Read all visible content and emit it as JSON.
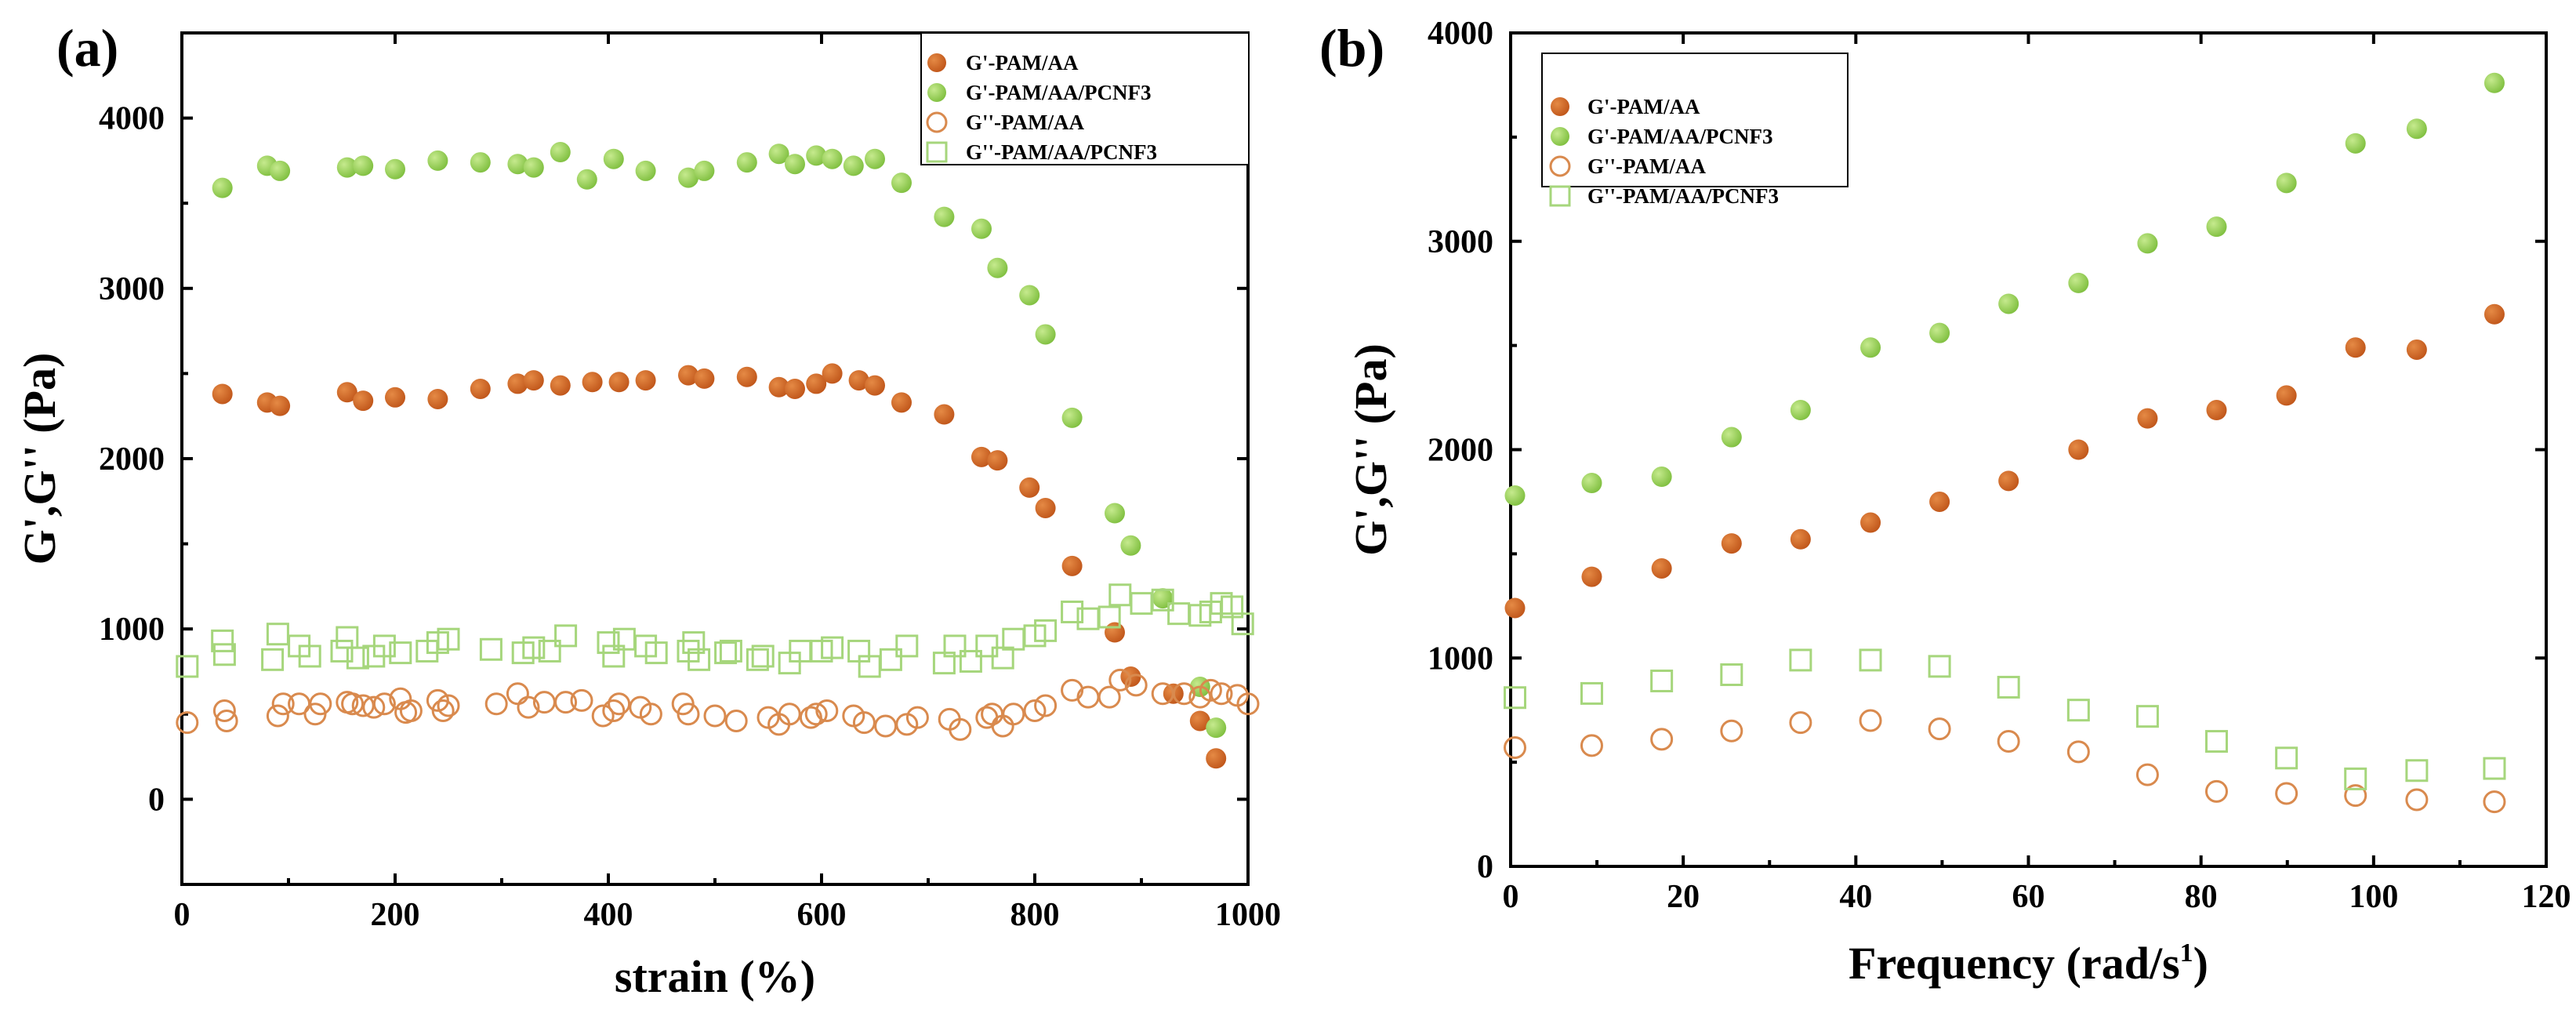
{
  "colors": {
    "orange": "#c0561a",
    "orange_light": "#e58a45",
    "green": "#7fbf3f",
    "green_light": "#c6ea8e",
    "orange_open": "#d98a4e",
    "green_open": "#a6d67c"
  },
  "chart_data": [
    {
      "panel": "(a)",
      "type": "scatter",
      "xlabel": "strain (%)",
      "ylabel": "G',G'' (Pa)",
      "xlim": [
        0,
        1000
      ],
      "ylim": [
        -500,
        4500
      ],
      "xticks": [
        0,
        200,
        400,
        600,
        800,
        1000
      ],
      "yticks": [
        0,
        1000,
        2000,
        3000,
        4000
      ],
      "legend": {
        "placement": "top-right",
        "entries": [
          "G'-PAM/AA",
          "G'-PAM/AA/PCNF3",
          "G''-PAM/AA",
          "G''-PAM/AA/PCNF3"
        ]
      },
      "series": [
        {
          "name": "G'-PAM/AA",
          "marker": "filled-circle",
          "color_key": "orange",
          "points": [
            [
              38,
              2380
            ],
            [
              80,
              2330
            ],
            [
              92,
              2310
            ],
            [
              155,
              2390
            ],
            [
              170,
              2340
            ],
            [
              200,
              2360
            ],
            [
              240,
              2350
            ],
            [
              280,
              2410
            ],
            [
              315,
              2440
            ],
            [
              330,
              2460
            ],
            [
              355,
              2430
            ],
            [
              385,
              2450
            ],
            [
              410,
              2450
            ],
            [
              435,
              2460
            ],
            [
              475,
              2490
            ],
            [
              490,
              2470
            ],
            [
              530,
              2480
            ],
            [
              560,
              2420
            ],
            [
              575,
              2410
            ],
            [
              595,
              2440
            ],
            [
              610,
              2500
            ],
            [
              635,
              2460
            ],
            [
              650,
              2430
            ],
            [
              675,
              2330
            ],
            [
              715,
              2260
            ],
            [
              750,
              2010
            ],
            [
              765,
              1990
            ],
            [
              795,
              1830
            ],
            [
              810,
              1710
            ],
            [
              835,
              1370
            ],
            [
              875,
              980
            ],
            [
              890,
              720
            ],
            [
              930,
              620
            ],
            [
              955,
              460
            ],
            [
              970,
              240
            ]
          ]
        },
        {
          "name": "G'-PAM/AA/PCNF3",
          "marker": "filled-circle",
          "color_key": "green",
          "points": [
            [
              38,
              3590
            ],
            [
              80,
              3720
            ],
            [
              92,
              3690
            ],
            [
              155,
              3710
            ],
            [
              170,
              3720
            ],
            [
              200,
              3700
            ],
            [
              240,
              3750
            ],
            [
              280,
              3740
            ],
            [
              315,
              3730
            ],
            [
              330,
              3710
            ],
            [
              355,
              3800
            ],
            [
              380,
              3640
            ],
            [
              405,
              3760
            ],
            [
              435,
              3690
            ],
            [
              475,
              3650
            ],
            [
              490,
              3690
            ],
            [
              530,
              3740
            ],
            [
              560,
              3790
            ],
            [
              575,
              3730
            ],
            [
              595,
              3780
            ],
            [
              610,
              3760
            ],
            [
              630,
              3720
            ],
            [
              650,
              3760
            ],
            [
              675,
              3620
            ],
            [
              715,
              3420
            ],
            [
              750,
              3350
            ],
            [
              765,
              3120
            ],
            [
              795,
              2960
            ],
            [
              810,
              2730
            ],
            [
              835,
              2240
            ],
            [
              875,
              1680
            ],
            [
              890,
              1490
            ],
            [
              920,
              1180
            ],
            [
              955,
              660
            ],
            [
              970,
              420
            ]
          ]
        },
        {
          "name": "G''-PAM/AA",
          "marker": "open-circle",
          "color_key": "orange_open",
          "points": [
            [
              5,
              450
            ],
            [
              40,
              520
            ],
            [
              42,
              460
            ],
            [
              90,
              490
            ],
            [
              95,
              560
            ],
            [
              110,
              560
            ],
            [
              125,
              500
            ],
            [
              130,
              560
            ],
            [
              155,
              570
            ],
            [
              160,
              560
            ],
            [
              170,
              550
            ],
            [
              180,
              540
            ],
            [
              190,
              560
            ],
            [
              205,
              590
            ],
            [
              210,
              510
            ],
            [
              215,
              520
            ],
            [
              240,
              580
            ],
            [
              245,
              520
            ],
            [
              250,
              550
            ],
            [
              295,
              560
            ],
            [
              315,
              620
            ],
            [
              325,
              540
            ],
            [
              340,
              570
            ],
            [
              360,
              570
            ],
            [
              375,
              580
            ],
            [
              395,
              490
            ],
            [
              405,
              520
            ],
            [
              410,
              560
            ],
            [
              430,
              540
            ],
            [
              440,
              500
            ],
            [
              470,
              560
            ],
            [
              475,
              500
            ],
            [
              500,
              490
            ],
            [
              520,
              460
            ],
            [
              550,
              480
            ],
            [
              560,
              440
            ],
            [
              570,
              500
            ],
            [
              590,
              480
            ],
            [
              595,
              500
            ],
            [
              605,
              520
            ],
            [
              630,
              490
            ],
            [
              640,
              450
            ],
            [
              660,
              430
            ],
            [
              680,
              440
            ],
            [
              690,
              480
            ],
            [
              720,
              470
            ],
            [
              730,
              410
            ],
            [
              755,
              480
            ],
            [
              760,
              500
            ],
            [
              770,
              430
            ],
            [
              780,
              500
            ],
            [
              800,
              520
            ],
            [
              810,
              550
            ],
            [
              835,
              640
            ],
            [
              850,
              600
            ],
            [
              870,
              600
            ],
            [
              880,
              700
            ],
            [
              895,
              670
            ],
            [
              920,
              620
            ],
            [
              940,
              620
            ],
            [
              955,
              600
            ],
            [
              965,
              640
            ],
            [
              975,
              620
            ],
            [
              990,
              610
            ],
            [
              1000,
              560
            ]
          ]
        },
        {
          "name": "G''-PAM/AA/PCNF3",
          "marker": "open-square",
          "color_key": "green_open",
          "points": [
            [
              5,
              780
            ],
            [
              38,
              930
            ],
            [
              40,
              850
            ],
            [
              85,
              820
            ],
            [
              90,
              970
            ],
            [
              110,
              900
            ],
            [
              120,
              840
            ],
            [
              150,
              870
            ],
            [
              155,
              950
            ],
            [
              165,
              830
            ],
            [
              180,
              840
            ],
            [
              190,
              900
            ],
            [
              205,
              860
            ],
            [
              230,
              870
            ],
            [
              240,
              920
            ],
            [
              250,
              940
            ],
            [
              290,
              880
            ],
            [
              320,
              860
            ],
            [
              330,
              890
            ],
            [
              345,
              870
            ],
            [
              360,
              960
            ],
            [
              400,
              920
            ],
            [
              405,
              840
            ],
            [
              415,
              940
            ],
            [
              435,
              900
            ],
            [
              445,
              860
            ],
            [
              475,
              870
            ],
            [
              480,
              920
            ],
            [
              485,
              820
            ],
            [
              510,
              860
            ],
            [
              515,
              870
            ],
            [
              540,
              820
            ],
            [
              545,
              840
            ],
            [
              570,
              800
            ],
            [
              580,
              870
            ],
            [
              600,
              870
            ],
            [
              610,
              890
            ],
            [
              635,
              870
            ],
            [
              645,
              780
            ],
            [
              665,
              820
            ],
            [
              680,
              900
            ],
            [
              715,
              800
            ],
            [
              725,
              900
            ],
            [
              740,
              810
            ],
            [
              755,
              900
            ],
            [
              770,
              830
            ],
            [
              780,
              940
            ],
            [
              800,
              960
            ],
            [
              810,
              990
            ],
            [
              835,
              1100
            ],
            [
              850,
              1060
            ],
            [
              870,
              1070
            ],
            [
              880,
              1200
            ],
            [
              900,
              1150
            ],
            [
              920,
              1170
            ],
            [
              935,
              1090
            ],
            [
              955,
              1080
            ],
            [
              965,
              1100
            ],
            [
              975,
              1150
            ],
            [
              985,
              1130
            ],
            [
              995,
              1030
            ]
          ]
        }
      ]
    },
    {
      "panel": "(b)",
      "type": "scatter",
      "xlabel": "Frequency (rad/s",
      "xlabel_sup": "1",
      "xlabel_end": ")",
      "ylabel": "G',G'' (Pa)",
      "xlim": [
        0,
        120
      ],
      "ylim": [
        0,
        4000
      ],
      "xticks": [
        0,
        20,
        40,
        60,
        80,
        100,
        120
      ],
      "yticks": [
        0,
        1000,
        2000,
        3000,
        4000
      ],
      "legend": {
        "placement": "top-left",
        "entries": [
          "G'-PAM/AA",
          "G'-PAM/AA/PCNF3",
          "G''-PAM/AA",
          "G''-PAM/AA/PCNF3"
        ]
      },
      "series": [
        {
          "name": "G'-PAM/AA",
          "marker": "filled-circle",
          "color_key": "orange",
          "points": [
            [
              0.5,
              1240
            ],
            [
              9.4,
              1390
            ],
            [
              17.5,
              1430
            ],
            [
              25.6,
              1550
            ],
            [
              33.6,
              1570
            ],
            [
              41.7,
              1650
            ],
            [
              49.7,
              1750
            ],
            [
              57.7,
              1850
            ],
            [
              65.8,
              2000
            ],
            [
              73.8,
              2150
            ],
            [
              81.8,
              2190
            ],
            [
              89.9,
              2260
            ],
            [
              97.9,
              2490
            ],
            [
              105,
              2480
            ],
            [
              114,
              2650
            ]
          ]
        },
        {
          "name": "G'-PAM/AA/PCNF3",
          "marker": "filled-circle",
          "color_key": "green",
          "points": [
            [
              0.5,
              1780
            ],
            [
              9.4,
              1840
            ],
            [
              17.5,
              1870
            ],
            [
              25.6,
              2060
            ],
            [
              33.6,
              2190
            ],
            [
              41.7,
              2490
            ],
            [
              49.7,
              2560
            ],
            [
              57.7,
              2700
            ],
            [
              65.8,
              2800
            ],
            [
              73.8,
              2990
            ],
            [
              81.8,
              3070
            ],
            [
              89.9,
              3280
            ],
            [
              97.9,
              3470
            ],
            [
              105,
              3540
            ],
            [
              114,
              3760
            ]
          ]
        },
        {
          "name": "G''-PAM/AA",
          "marker": "open-circle",
          "color_key": "orange_open",
          "points": [
            [
              0.5,
              570
            ],
            [
              9.4,
              580
            ],
            [
              17.5,
              610
            ],
            [
              25.6,
              650
            ],
            [
              33.6,
              690
            ],
            [
              41.7,
              700
            ],
            [
              49.7,
              660
            ],
            [
              57.7,
              600
            ],
            [
              65.8,
              550
            ],
            [
              73.8,
              440
            ],
            [
              81.8,
              360
            ],
            [
              89.9,
              350
            ],
            [
              97.9,
              340
            ],
            [
              105,
              320
            ],
            [
              114,
              310
            ]
          ]
        },
        {
          "name": "G''-PAM/AA/PCNF3",
          "marker": "open-square",
          "color_key": "green_open",
          "points": [
            [
              0.5,
              810
            ],
            [
              9.4,
              830
            ],
            [
              17.5,
              890
            ],
            [
              25.6,
              920
            ],
            [
              33.6,
              990
            ],
            [
              41.7,
              990
            ],
            [
              49.7,
              960
            ],
            [
              57.7,
              860
            ],
            [
              65.8,
              750
            ],
            [
              73.8,
              720
            ],
            [
              81.8,
              600
            ],
            [
              89.9,
              520
            ],
            [
              97.9,
              420
            ],
            [
              105,
              460
            ],
            [
              114,
              470
            ]
          ]
        }
      ]
    }
  ]
}
